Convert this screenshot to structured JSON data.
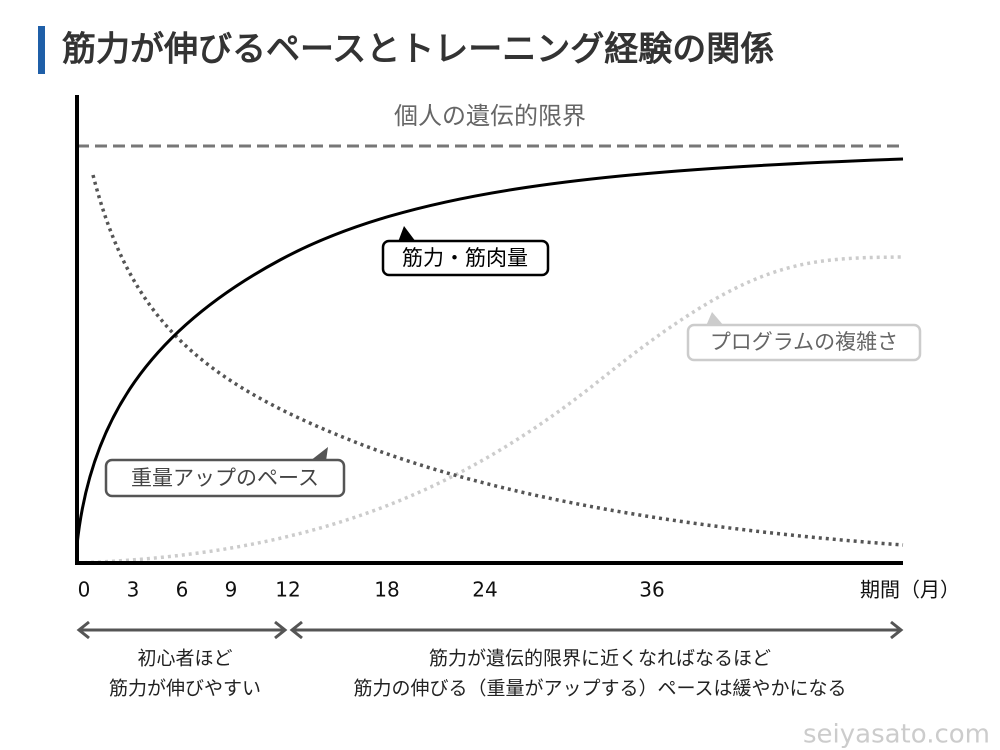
{
  "title": "筋力が伸びるペースとトレーニング経験の関係",
  "limit_label": "個人の遺伝的限界",
  "curves": [
    {
      "label": "筋力・筋肉量"
    },
    {
      "label": "プログラムの複雑さ"
    },
    {
      "label": "重量アップのペース"
    }
  ],
  "x_axis": {
    "ticks": [
      0,
      3,
      6,
      9,
      12,
      18,
      24,
      36
    ],
    "label": "期間（月）"
  },
  "phases": [
    {
      "lines": [
        "初心者ほど",
        "筋力が伸びやすい"
      ]
    },
    {
      "lines": [
        "筋力が遺伝的限界に近くなればなるほど",
        "筋力の伸びる（重量がアップする）ペースは緩やかになる"
      ]
    }
  ],
  "watermark": "seiyasato.com"
}
